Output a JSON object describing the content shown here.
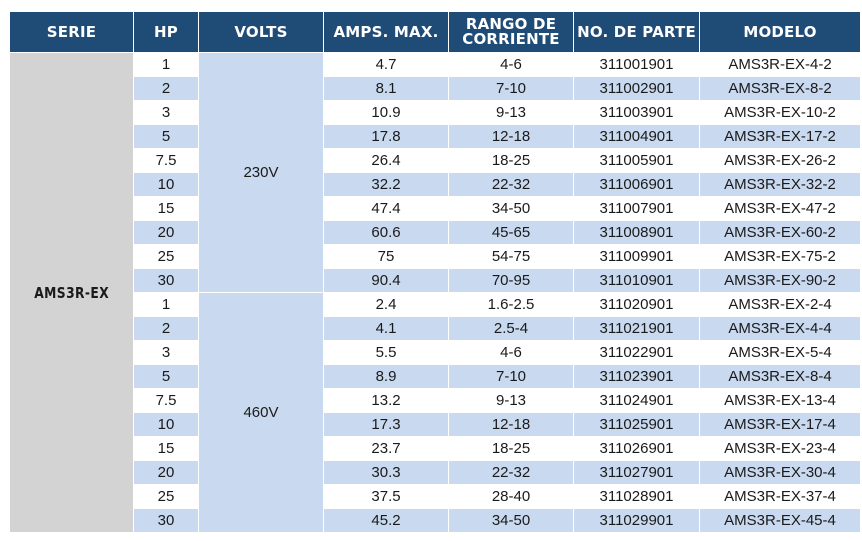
{
  "columns": [
    "SERIE",
    "HP",
    "VOLTS",
    "AMPS. MAX.",
    "RANGO DE CORRIENTE",
    "NO. DE PARTE",
    "MODELO"
  ],
  "header_lines": {
    "rango_line1": "RANGO DE",
    "rango_line2": "CORRIENTE"
  },
  "serie": "AMS3R-EX",
  "groups": [
    {
      "volts": "230V",
      "rows": [
        {
          "hp": "1",
          "amps": "4.7",
          "rango": "4-6",
          "parte": "311001901",
          "modelo": "AMS3R-EX-4-2"
        },
        {
          "hp": "2",
          "amps": "8.1",
          "rango": "7-10",
          "parte": "311002901",
          "modelo": "AMS3R-EX-8-2"
        },
        {
          "hp": "3",
          "amps": "10.9",
          "rango": "9-13",
          "parte": "311003901",
          "modelo": "AMS3R-EX-10-2"
        },
        {
          "hp": "5",
          "amps": "17.8",
          "rango": "12-18",
          "parte": "311004901",
          "modelo": "AMS3R-EX-17-2"
        },
        {
          "hp": "7.5",
          "amps": "26.4",
          "rango": "18-25",
          "parte": "311005901",
          "modelo": "AMS3R-EX-26-2"
        },
        {
          "hp": "10",
          "amps": "32.2",
          "rango": "22-32",
          "parte": "311006901",
          "modelo": "AMS3R-EX-32-2"
        },
        {
          "hp": "15",
          "amps": "47.4",
          "rango": "34-50",
          "parte": "311007901",
          "modelo": "AMS3R-EX-47-2"
        },
        {
          "hp": "20",
          "amps": "60.6",
          "rango": "45-65",
          "parte": "311008901",
          "modelo": "AMS3R-EX-60-2"
        },
        {
          "hp": "25",
          "amps": "75",
          "rango": "54-75",
          "parte": "311009901",
          "modelo": "AMS3R-EX-75-2"
        },
        {
          "hp": "30",
          "amps": "90.4",
          "rango": "70-95",
          "parte": "311010901",
          "modelo": "AMS3R-EX-90-2"
        }
      ]
    },
    {
      "volts": "460V",
      "rows": [
        {
          "hp": "1",
          "amps": "2.4",
          "rango": "1.6-2.5",
          "parte": "311020901",
          "modelo": "AMS3R-EX-2-4"
        },
        {
          "hp": "2",
          "amps": "4.1",
          "rango": "2.5-4",
          "parte": "311021901",
          "modelo": "AMS3R-EX-4-4"
        },
        {
          "hp": "3",
          "amps": "5.5",
          "rango": "4-6",
          "parte": "311022901",
          "modelo": "AMS3R-EX-5-4"
        },
        {
          "hp": "5",
          "amps": "8.9",
          "rango": "7-10",
          "parte": "311023901",
          "modelo": "AMS3R-EX-8-4"
        },
        {
          "hp": "7.5",
          "amps": "13.2",
          "rango": "9-13",
          "parte": "311024901",
          "modelo": "AMS3R-EX-13-4"
        },
        {
          "hp": "10",
          "amps": "17.3",
          "rango": "12-18",
          "parte": "311025901",
          "modelo": "AMS3R-EX-17-4"
        },
        {
          "hp": "15",
          "amps": "23.7",
          "rango": "18-25",
          "parte": "311026901",
          "modelo": "AMS3R-EX-23-4"
        },
        {
          "hp": "20",
          "amps": "30.3",
          "rango": "22-32",
          "parte": "311027901",
          "modelo": "AMS3R-EX-30-4"
        },
        {
          "hp": "25",
          "amps": "37.5",
          "rango": "28-40",
          "parte": "311028901",
          "modelo": "AMS3R-EX-37-4"
        },
        {
          "hp": "30",
          "amps": "45.2",
          "rango": "34-50",
          "parte": "311029901",
          "modelo": "AMS3R-EX-45-4"
        }
      ]
    }
  ],
  "colors": {
    "header_bg": "#1f4b77",
    "row_stripe": "#c9d9ef",
    "serie_bg": "#d3d3d3",
    "serie_text": "#1f3550"
  }
}
